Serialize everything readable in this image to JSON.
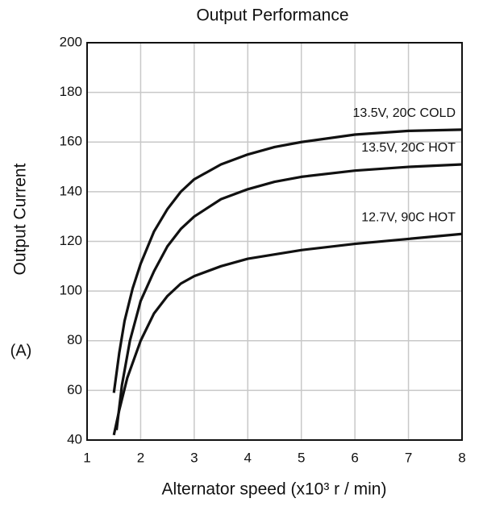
{
  "chart_data": {
    "type": "line",
    "title": "Output Performance",
    "x_label": "Alternator speed (x10³ r / min)",
    "y_label": "Output Current",
    "y_unit": "(A)",
    "xlim": [
      1,
      8
    ],
    "xticks": [
      1,
      2,
      3,
      4,
      5,
      6,
      7,
      8
    ],
    "ylim": [
      40,
      200
    ],
    "yticks": [
      40,
      60,
      80,
      100,
      120,
      140,
      160,
      180,
      200
    ],
    "grid": true,
    "series": [
      {
        "name": "13.5V, 20C COLD",
        "color": "#111111",
        "x": [
          1.5,
          1.6,
          1.7,
          1.85,
          2,
          2.25,
          2.5,
          2.75,
          3,
          3.5,
          4,
          4.5,
          5,
          6,
          7,
          8
        ],
        "values": [
          59,
          75,
          88,
          101,
          111,
          124,
          133,
          140,
          145,
          151,
          155,
          158,
          160,
          163,
          164.5,
          165
        ]
      },
      {
        "name": "13.5V, 20C HOT",
        "color": "#111111",
        "x": [
          1.55,
          1.65,
          1.8,
          2,
          2.25,
          2.5,
          2.75,
          3,
          3.5,
          4,
          4.5,
          5,
          6,
          7,
          8
        ],
        "values": [
          44,
          62,
          80,
          96,
          108,
          118,
          125,
          130,
          137,
          141,
          144,
          146,
          148.5,
          150,
          151
        ]
      },
      {
        "name": "12.7V, 90C HOT",
        "color": "#111111",
        "x": [
          1.5,
          1.6,
          1.75,
          2,
          2.25,
          2.5,
          2.75,
          3,
          3.5,
          4,
          5,
          6,
          7,
          8
        ],
        "values": [
          42,
          52,
          65,
          80,
          91,
          98,
          103,
          106,
          110,
          113,
          116.5,
          119,
          121,
          123
        ]
      }
    ]
  }
}
